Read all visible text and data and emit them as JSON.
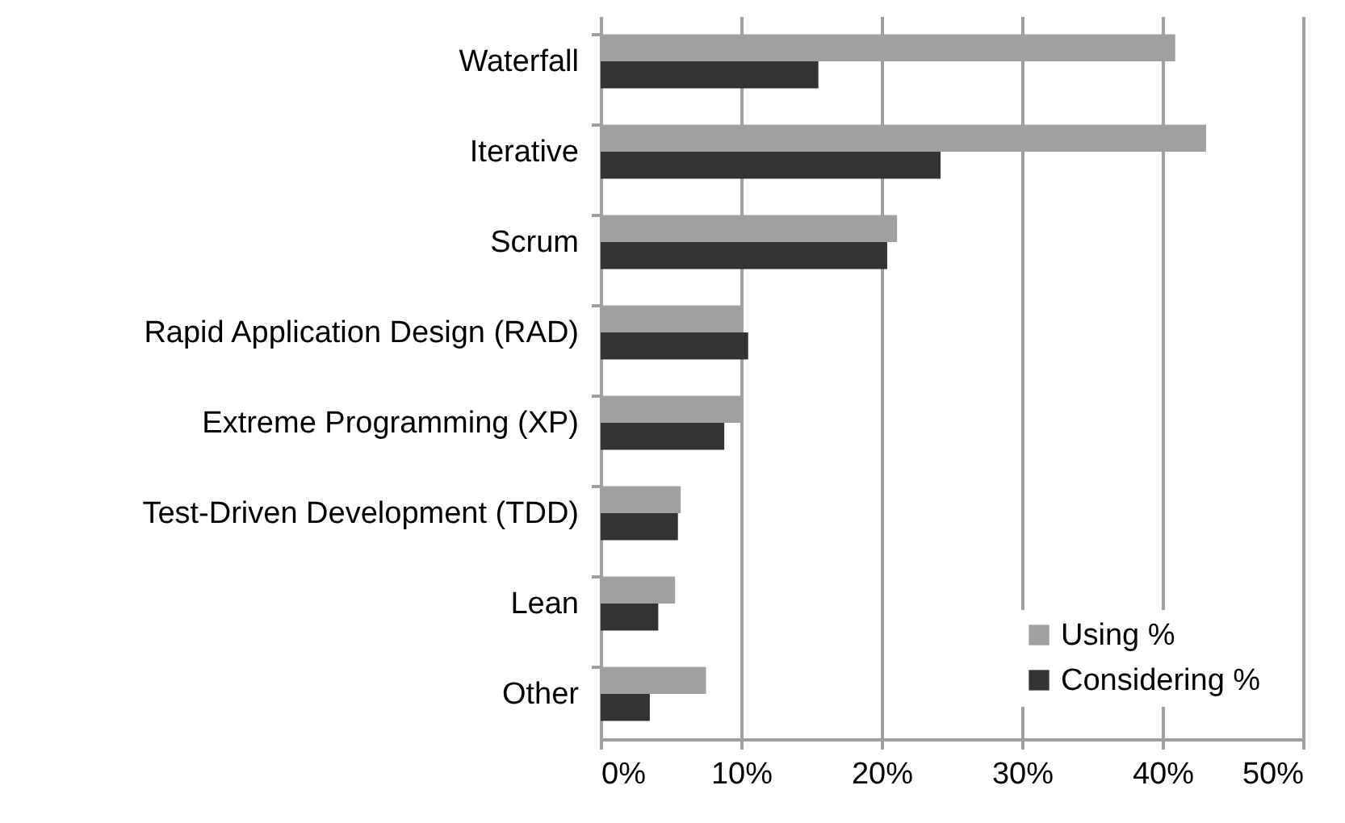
{
  "chart_data": {
    "type": "bar",
    "orientation": "horizontal",
    "categories": [
      "Waterfall",
      "Iterative",
      "Scrum",
      "Rapid Application Design (RAD)",
      "Extreme Programming (XP)",
      "Test-Driven Development (TDD)",
      "Lean",
      "Other"
    ],
    "series": [
      {
        "name": "Using %",
        "color": "#a0a0a0",
        "values": [
          40.9,
          43.1,
          21.1,
          10,
          10,
          5.7,
          5.3,
          7.5
        ]
      },
      {
        "name": "Considering %",
        "color": "#333333",
        "values": [
          15.5,
          24.2,
          20.4,
          10.5,
          8.8,
          5.5,
          4.1,
          3.5
        ]
      }
    ],
    "xlim": [
      0,
      50
    ],
    "xticks": [
      {
        "value": 0,
        "label": "0%"
      },
      {
        "value": 10,
        "label": "10%"
      },
      {
        "value": 20,
        "label": "20%"
      },
      {
        "value": 30,
        "label": "30%"
      },
      {
        "value": 40,
        "label": "40%"
      },
      {
        "value": 50,
        "label": "50%"
      }
    ],
    "grid": "x",
    "legend": "bottom right"
  }
}
